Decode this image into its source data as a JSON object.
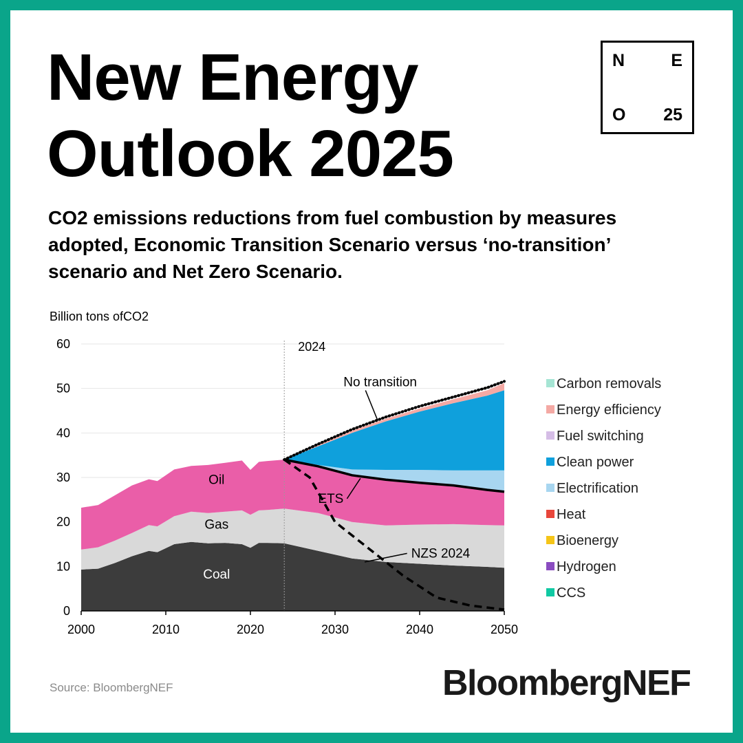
{
  "header": {
    "title_line1": "New Energy",
    "title_line2": "Outlook 2025",
    "subtitle": "CO2 emissions reductions from fuel combustion by measures adopted, Economic Transition Scenario versus ‘no-transition’ scenario and Net Zero Scenario."
  },
  "logo": {
    "n": "N",
    "e": "E",
    "o": "O",
    "num": "25"
  },
  "footer": {
    "source": "Source: BloombergNEF",
    "brand": "BloombergNEF"
  },
  "chart_data": {
    "type": "area",
    "title": "CO2 emissions reductions from fuel combustion by measures adopted",
    "ylabel": "Billion tons ofCO2",
    "xlim": [
      2000,
      2050
    ],
    "ylim": [
      0,
      60
    ],
    "x_ticks": [
      2000,
      2010,
      2020,
      2030,
      2040,
      2050
    ],
    "y_ticks": [
      0,
      10,
      20,
      30,
      40,
      50,
      60
    ],
    "marker_line": {
      "x": 2024,
      "label": "2024"
    },
    "layer_labels": [
      {
        "text": "Coal",
        "x": 2016,
        "y": 7.3
      },
      {
        "text": "Gas",
        "x": 2016,
        "y": 18.5
      },
      {
        "text": "Oil",
        "x": 2016,
        "y": 28.5
      }
    ],
    "history": {
      "x": [
        2000,
        2002,
        2004,
        2006,
        2008,
        2009,
        2011,
        2013,
        2015,
        2017,
        2019,
        2020,
        2021,
        2022,
        2024
      ],
      "coal": [
        9.3,
        9.5,
        10.8,
        12.3,
        13.5,
        13.2,
        15.0,
        15.5,
        15.2,
        15.3,
        15.0,
        14.2,
        15.3,
        15.3,
        15.2
      ],
      "gas_top": [
        13.8,
        14.3,
        15.8,
        17.5,
        19.3,
        19.0,
        21.3,
        22.3,
        22.0,
        22.3,
        22.6,
        21.6,
        22.6,
        22.7,
        23.0
      ],
      "oil_top": [
        23.2,
        23.8,
        26.0,
        28.2,
        29.6,
        29.2,
        31.8,
        32.6,
        32.8,
        33.3,
        33.8,
        31.7,
        33.5,
        33.7,
        34.0
      ]
    },
    "projection": {
      "x": [
        2024,
        2028,
        2032,
        2036,
        2040,
        2044,
        2048,
        2050
      ],
      "coal": [
        15.2,
        13.5,
        11.8,
        11.0,
        10.6,
        10.2,
        9.9,
        9.7
      ],
      "gas_top": [
        23.0,
        22.0,
        20.0,
        19.2,
        19.4,
        19.5,
        19.3,
        19.2
      ],
      "oil_top": [
        34.0,
        32.5,
        30.5,
        29.5,
        28.8,
        28.2,
        27.2,
        26.8
      ],
      "electrification_top": [
        34.0,
        32.8,
        31.8,
        31.7,
        31.7,
        31.6,
        31.6,
        31.6
      ],
      "clean_power_top": [
        34.0,
        37.0,
        40.0,
        42.6,
        44.8,
        46.7,
        48.4,
        49.6
      ],
      "energy_efficiency_top": [
        34.0,
        37.3,
        40.5,
        43.2,
        45.5,
        47.6,
        49.6,
        51.2
      ]
    },
    "series": [
      {
        "name": "No transition",
        "style": "dotted",
        "x": [
          2024,
          2028,
          2032,
          2036,
          2040,
          2044,
          2048,
          2050
        ],
        "values": [
          34.0,
          37.5,
          40.8,
          43.6,
          46.0,
          48.1,
          50.2,
          51.6
        ]
      },
      {
        "name": "ETS",
        "style": "solid",
        "x": [
          2024,
          2028,
          2032,
          2036,
          2040,
          2044,
          2048,
          2050
        ],
        "values": [
          34.0,
          32.5,
          30.5,
          29.5,
          28.8,
          28.2,
          27.2,
          26.8
        ]
      },
      {
        "name": "NZS 2024",
        "style": "dashed",
        "x": [
          2024,
          2027,
          2030,
          2034,
          2038,
          2042,
          2046,
          2050
        ],
        "values": [
          34.0,
          30.0,
          20.0,
          14.0,
          8.0,
          3.0,
          1.2,
          0.3
        ]
      }
    ],
    "line_labels": [
      {
        "text": "No transition",
        "x": 2031,
        "y": 50.5,
        "anchor_x": 2035,
        "anchor_y": 43.0
      },
      {
        "text": "ETS",
        "x": 2028,
        "y": 24.3,
        "anchor_x": 2033,
        "anchor_y": 29.8
      },
      {
        "text": "NZS 2024",
        "x": 2039,
        "y": 12.0,
        "anchor_x": 2033.5,
        "anchor_y": 11.0
      }
    ],
    "legend": [
      {
        "name": "Carbon removals",
        "color": "#a6e5d4"
      },
      {
        "name": "Energy efficiency",
        "color": "#f4a9a4"
      },
      {
        "name": "Fuel switching",
        "color": "#d5bde6"
      },
      {
        "name": "Clean power",
        "color": "#0fa0dc"
      },
      {
        "name": "Electrification",
        "color": "#a8d6f0"
      },
      {
        "name": "Heat",
        "color": "#e8463b"
      },
      {
        "name": "Bioenergy",
        "color": "#f5c518"
      },
      {
        "name": "Hydrogen",
        "color": "#8a4cc0"
      },
      {
        "name": "CCS",
        "color": "#10c9a3"
      }
    ],
    "colors": {
      "coal": "#3c3c3c",
      "gas": "#d9d9d9",
      "oil": "#ea5ea8",
      "line": "#000000",
      "grid": "#e6e6e6"
    }
  }
}
